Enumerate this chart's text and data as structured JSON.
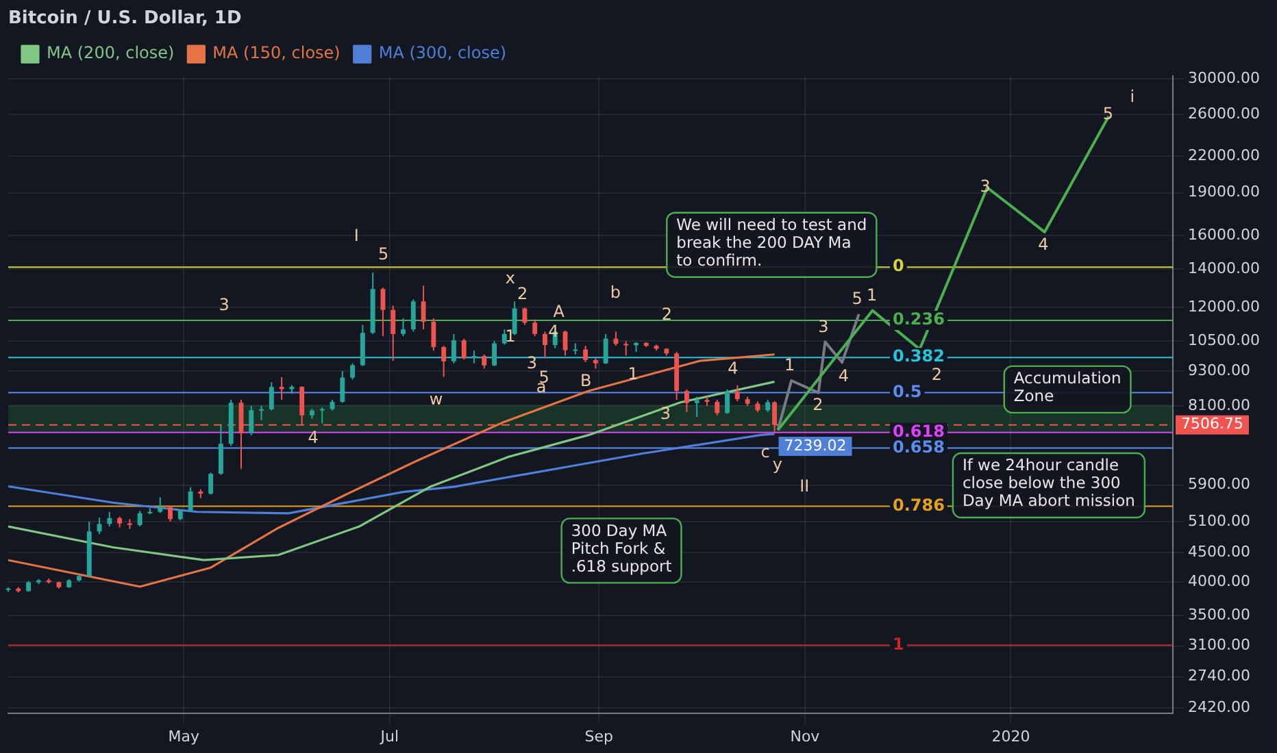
{
  "chart_data": {
    "type": "candlestick",
    "title": "Bitcoin / U.S. Dollar, 1D",
    "x": [
      "2019-03-10",
      "2019-03-13",
      "2019-03-16",
      "2019-03-19",
      "2019-03-22",
      "2019-03-25",
      "2019-03-28",
      "2019-03-31",
      "2019-04-03",
      "2019-04-06",
      "2019-04-09",
      "2019-04-12",
      "2019-04-15",
      "2019-04-18",
      "2019-04-21",
      "2019-04-24",
      "2019-04-27",
      "2019-04-30",
      "2019-05-03",
      "2019-05-06",
      "2019-05-09",
      "2019-05-12",
      "2019-05-15",
      "2019-05-18",
      "2019-05-21",
      "2019-05-24",
      "2019-05-27",
      "2019-05-30",
      "2019-06-02",
      "2019-06-05",
      "2019-06-08",
      "2019-06-11",
      "2019-06-14",
      "2019-06-17",
      "2019-06-20",
      "2019-06-23",
      "2019-06-26",
      "2019-06-29",
      "2019-07-02",
      "2019-07-05",
      "2019-07-08",
      "2019-07-11",
      "2019-07-14",
      "2019-07-17",
      "2019-07-20",
      "2019-07-23",
      "2019-07-26",
      "2019-07-29",
      "2019-08-01",
      "2019-08-04",
      "2019-08-07",
      "2019-08-10",
      "2019-08-13",
      "2019-08-16",
      "2019-08-19",
      "2019-08-22",
      "2019-08-25",
      "2019-08-28",
      "2019-08-31",
      "2019-09-03",
      "2019-09-06",
      "2019-09-09",
      "2019-09-12",
      "2019-09-15",
      "2019-09-18",
      "2019-09-21",
      "2019-09-24",
      "2019-09-27",
      "2019-09-30",
      "2019-10-03",
      "2019-10-06",
      "2019-10-09",
      "2019-10-12",
      "2019-10-15",
      "2019-10-18",
      "2019-10-21",
      "2019-10-23"
    ],
    "ohlc": [
      [
        3880,
        3920,
        3850,
        3900
      ],
      [
        3900,
        3920,
        3840,
        3860
      ],
      [
        3860,
        4020,
        3850,
        4000
      ],
      [
        4000,
        4050,
        3970,
        4030
      ],
      [
        4030,
        4060,
        3980,
        4000
      ],
      [
        4000,
        4010,
        3900,
        3920
      ],
      [
        3920,
        4050,
        3910,
        4030
      ],
      [
        4030,
        4120,
        4010,
        4100
      ],
      [
        4100,
        5100,
        4090,
        4900
      ],
      [
        4900,
        5180,
        4850,
        5050
      ],
      [
        5050,
        5300,
        5000,
        5170
      ],
      [
        5170,
        5200,
        4980,
        5060
      ],
      [
        5060,
        5150,
        4950,
        5030
      ],
      [
        5030,
        5320,
        5000,
        5270
      ],
      [
        5270,
        5380,
        5250,
        5300
      ],
      [
        5300,
        5620,
        5280,
        5400
      ],
      [
        5400,
        5420,
        5100,
        5150
      ],
      [
        5150,
        5350,
        5120,
        5330
      ],
      [
        5330,
        5850,
        5320,
        5750
      ],
      [
        5750,
        5800,
        5600,
        5700
      ],
      [
        5700,
        6200,
        5680,
        6170
      ],
      [
        6170,
        7500,
        6150,
        6960
      ],
      [
        6960,
        8300,
        6900,
        8200
      ],
      [
        8200,
        8300,
        6300,
        7260
      ],
      [
        7260,
        8100,
        7200,
        7960
      ],
      [
        7960,
        8100,
        7650,
        7990
      ],
      [
        7990,
        8900,
        7950,
        8740
      ],
      [
        8740,
        9080,
        8300,
        8660
      ],
      [
        8660,
        8800,
        8500,
        8740
      ],
      [
        8740,
        8760,
        7500,
        7800
      ],
      [
        7800,
        8000,
        7700,
        7950
      ],
      [
        7950,
        8050,
        7550,
        8000
      ],
      [
        8000,
        8300,
        7950,
        8230
      ],
      [
        8230,
        9300,
        8200,
        9070
      ],
      [
        9070,
        9600,
        9000,
        9530
      ],
      [
        9530,
        11200,
        9500,
        10850
      ],
      [
        10850,
        13800,
        10800,
        12930
      ],
      [
        12930,
        13000,
        10700,
        11890
      ],
      [
        11890,
        12100,
        9700,
        10800
      ],
      [
        10800,
        11500,
        10700,
        11000
      ],
      [
        11000,
        12400,
        10900,
        12300
      ],
      [
        12300,
        13100,
        11000,
        11340
      ],
      [
        11340,
        11500,
        10100,
        10250
      ],
      [
        10250,
        10300,
        9100,
        9680
      ],
      [
        9680,
        10800,
        9600,
        10530
      ],
      [
        10530,
        10600,
        9750,
        9800
      ],
      [
        9800,
        10100,
        9600,
        9890
      ],
      [
        9890,
        9950,
        9400,
        9520
      ],
      [
        9520,
        10500,
        9500,
        10400
      ],
      [
        10400,
        11000,
        10350,
        10800
      ],
      [
        10800,
        12300,
        10750,
        11960
      ],
      [
        11960,
        12000,
        11200,
        11300
      ],
      [
        11300,
        11450,
        10700,
        10800
      ],
      [
        10800,
        10900,
        9800,
        10330
      ],
      [
        10330,
        10950,
        10200,
        10900
      ],
      [
        10900,
        10950,
        9900,
        10120
      ],
      [
        10120,
        10400,
        9950,
        10150
      ],
      [
        10150,
        10300,
        9650,
        9730
      ],
      [
        9730,
        9800,
        9400,
        9600
      ],
      [
        9600,
        10800,
        9580,
        10600
      ],
      [
        10600,
        10900,
        10300,
        10380
      ],
      [
        10380,
        10500,
        9900,
        10320
      ],
      [
        10320,
        10450,
        10050,
        10420
      ],
      [
        10420,
        10450,
        10250,
        10300
      ],
      [
        10300,
        10350,
        10100,
        10180
      ],
      [
        10180,
        10200,
        9900,
        9990
      ],
      [
        9990,
        10050,
        8300,
        8600
      ],
      [
        8600,
        8650,
        7900,
        8190
      ],
      [
        8190,
        8400,
        7750,
        8290
      ],
      [
        8290,
        8400,
        8100,
        8230
      ],
      [
        8230,
        8300,
        7800,
        7870
      ],
      [
        7870,
        8650,
        7850,
        8580
      ],
      [
        8580,
        8800,
        8250,
        8320
      ],
      [
        8320,
        8400,
        8100,
        8170
      ],
      [
        8170,
        8250,
        7900,
        7960
      ],
      [
        7960,
        8300,
        7900,
        8220
      ],
      [
        8220,
        8250,
        7300,
        7506.75
      ]
    ],
    "series": [
      {
        "name": "MA (200, close)",
        "type": "line",
        "color": "#81c784",
        "x": [
          "2019-03-10",
          "2019-04-10",
          "2019-05-07",
          "2019-05-29",
          "2019-06-22",
          "2019-07-13",
          "2019-08-05",
          "2019-08-29",
          "2019-09-25",
          "2019-10-23"
        ],
        "values": [
          5000,
          4600,
          4370,
          4460,
          5000,
          5860,
          6600,
          7210,
          8210,
          8920
        ]
      },
      {
        "name": "MA (150, close)",
        "type": "line",
        "color": "#e57343",
        "x": [
          "2019-03-10",
          "2019-04-18",
          "2019-05-09",
          "2019-05-29",
          "2019-06-18",
          "2019-07-09",
          "2019-08-04",
          "2019-08-29",
          "2019-10-01",
          "2019-10-23"
        ],
        "values": [
          4370,
          3930,
          4240,
          4970,
          5680,
          6500,
          7600,
          8600,
          9700,
          9950
        ]
      },
      {
        "name": "MA (300, close)",
        "type": "line",
        "color": "#4f7fd6",
        "x": [
          "2019-03-10",
          "2019-04-10",
          "2019-05-05",
          "2019-06-01",
          "2019-07-05",
          "2019-07-20",
          "2019-09-13",
          "2019-10-19",
          "2019-10-23"
        ],
        "values": [
          5870,
          5500,
          5300,
          5270,
          5740,
          5860,
          6680,
          7210,
          7239.02
        ],
        "value_labels": [
          null,
          null,
          null,
          null,
          null,
          null,
          null,
          null,
          "7239.02"
        ]
      },
      {
        "type": "line",
        "color": "#4caf50",
        "x": [
          "2019-10-24",
          "2019-11-21",
          "2019-12-05",
          "2019-12-25",
          "2020-01-11",
          "2020-01-30"
        ],
        "values": [
          7350,
          11860,
          10160,
          19400,
          16240,
          25800
        ]
      },
      {
        "type": "line",
        "color": "#787b86",
        "x": [
          "2019-10-24",
          "2019-10-28",
          "2019-11-05",
          "2019-11-07",
          "2019-11-12",
          "2019-11-17"
        ],
        "values": [
          7350,
          8960,
          8540,
          10460,
          9640,
          11690
        ]
      }
    ],
    "xlim": [
      "2019-03-10",
      "2020-02-18"
    ],
    "xticks": [
      {
        "value": "2019-05-01",
        "label": "May"
      },
      {
        "value": "2019-07-01",
        "label": "Jul"
      },
      {
        "value": "2019-09-01",
        "label": "Sep"
      },
      {
        "value": "2019-11-01",
        "label": "Nov"
      },
      {
        "value": "2020-01-01",
        "label": "2020"
      }
    ],
    "log": true,
    "ylim": [
      2370,
      30300
    ],
    "yticks": [
      {
        "value": 2420,
        "label": "2420.00"
      },
      {
        "value": 2740,
        "label": "2740.00"
      },
      {
        "value": 3100,
        "label": "3100.00"
      },
      {
        "value": 3500,
        "label": "3500.00"
      },
      {
        "value": 4000,
        "label": "4000.00"
      },
      {
        "value": 4500,
        "label": "4500.00"
      },
      {
        "value": 5100,
        "label": "5100.00"
      },
      {
        "value": 5900,
        "label": "5900.00"
      },
      {
        "value": 8100,
        "label": "8100.00"
      },
      {
        "value": 9300,
        "label": "9300.00"
      },
      {
        "value": 10500,
        "label": "10500.00"
      },
      {
        "value": 12000,
        "label": "12000.00"
      },
      {
        "value": 14000,
        "label": "14000.00"
      },
      {
        "value": 16000,
        "label": "16000.00"
      },
      {
        "value": 19000,
        "label": "19000.00"
      },
      {
        "value": 22000,
        "label": "22000.00"
      },
      {
        "value": 26000,
        "label": "26000.00"
      },
      {
        "value": 30000,
        "label": "30000.00"
      }
    ],
    "grid": true,
    "legend": "top left",
    "ref_lines": [
      {
        "axis": "y",
        "value": 14110,
        "color": "#d4d43a"
      },
      {
        "axis": "y",
        "value": 11400,
        "color": "#4caf50"
      },
      {
        "axis": "y",
        "value": 9830,
        "color": "#26c6da"
      },
      {
        "axis": "y",
        "value": 8540,
        "color": "#5b8def"
      },
      {
        "axis": "y",
        "value": 7280,
        "color": "#e040fb"
      },
      {
        "axis": "y",
        "value": 6840,
        "color": "#5b8def"
      },
      {
        "axis": "y",
        "value": 5420,
        "color": "#e6a020"
      },
      {
        "axis": "y",
        "value": 3110,
        "color": "#c62828"
      },
      {
        "axis": "y",
        "value": 7506.75,
        "label": "7506.75",
        "color": "#f05350",
        "line_style": "dashed"
      }
    ],
    "bands": [
      {
        "axis": "y",
        "from": 7280,
        "to": 8130,
        "color": "#2e9b3a"
      }
    ],
    "annotations": [
      "We will need to test and\nbreak the 200 DAY Ma\nto confirm.",
      "Accumulation\nZone",
      "If we 24hour candle\nclose below the 300\nDay MA abort mission",
      "300 Day MA\nPitch Fork &\n.618 support",
      "I",
      "5",
      "3",
      "4",
      "w",
      "x",
      "A",
      "b",
      "a",
      "B",
      "2",
      "4",
      "c",
      "y",
      "II",
      "2",
      "1",
      "4",
      "3",
      "5",
      "1",
      "3",
      "1",
      "2",
      "3",
      "4",
      "5",
      "1",
      "2",
      "3",
      "4",
      "5",
      "i",
      {
        "text": "0",
        "x": "2019-11-27",
        "y": 14110
      },
      {
        "text": "0.236",
        "x": "2019-11-27",
        "y": 11400
      },
      {
        "text": "0.382",
        "x": "2019-11-27",
        "y": 9830
      },
      {
        "text": "0.5",
        "x": "2019-11-27",
        "y": 8540
      },
      {
        "text": "0.618",
        "x": "2019-11-27",
        "y": 7280
      },
      {
        "text": "0.658",
        "x": "2019-11-27",
        "y": 6840
      },
      {
        "text": "0.786",
        "x": "2019-11-27",
        "y": 5420
      },
      {
        "text": "1",
        "x": "2019-11-27",
        "y": 3110
      }
    ]
  }
}
